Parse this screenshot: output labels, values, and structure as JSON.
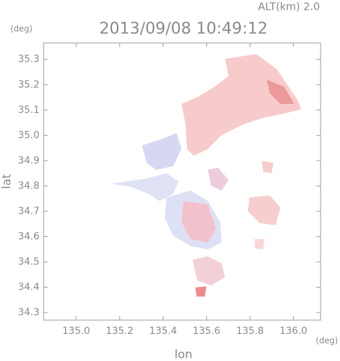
{
  "chart_data": {
    "type": "map",
    "title": "2013/09/08 10:49:12",
    "annotation": "ALT(km) 2.0",
    "y_unit": "(deg)",
    "x_unit": "(deg)",
    "xlabel": "lon",
    "ylabel": "lat",
    "xlim": [
      134.85,
      136.125
    ],
    "ylim": [
      34.27,
      35.365
    ],
    "xticks": [
      {
        "value": 135,
        "label": "135.0"
      },
      135.2,
      135.4,
      135.6,
      135.8,
      {
        "value": 136,
        "label": "136.0"
      }
    ],
    "yticks": [
      34.3,
      34.4,
      34.5,
      34.6,
      34.7,
      34.8,
      34.9,
      {
        "value": 35,
        "label": "35.0"
      },
      35.1,
      35.2,
      35.3
    ]
  }
}
